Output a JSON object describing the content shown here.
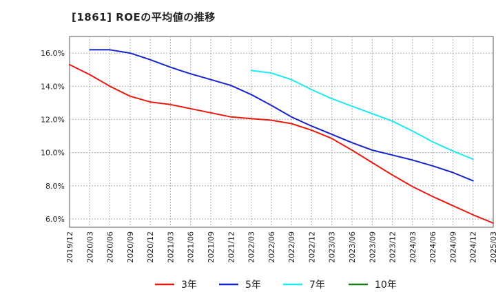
{
  "chart_data": {
    "type": "line",
    "title": "[1861]  ROEの平均値の推移",
    "xlabel": "",
    "ylabel": "",
    "ylim": [
      5.5,
      17.0
    ],
    "yticks": [
      "6.0%",
      "8.0%",
      "10.0%",
      "12.0%",
      "14.0%",
      "16.0%"
    ],
    "ytick_values": [
      6,
      8,
      10,
      12,
      14,
      16
    ],
    "x_labels": [
      "2019/12",
      "2020/03",
      "2020/06",
      "2020/09",
      "2020/12",
      "2021/03",
      "2021/06",
      "2021/09",
      "2021/12",
      "2022/03",
      "2022/06",
      "2022/09",
      "2022/12",
      "2023/03",
      "2023/06",
      "2023/09",
      "2023/12",
      "2024/03",
      "2024/06",
      "2024/09",
      "2024/12",
      "2025/03"
    ],
    "grid": true,
    "legend_position": "bottom",
    "series": [
      {
        "name": "3年",
        "color": "#e8190f",
        "values": [
          15.3,
          14.7,
          14.0,
          13.4,
          13.05,
          12.9,
          12.65,
          12.4,
          12.15,
          12.05,
          11.95,
          11.75,
          11.35,
          10.85,
          10.15,
          9.4,
          8.65,
          7.95,
          7.35,
          6.8,
          6.25,
          5.75
        ]
      },
      {
        "name": "5年",
        "color": "#1624c8",
        "start_index": 1,
        "values": [
          16.2,
          16.2,
          16.0,
          15.6,
          15.15,
          14.75,
          14.4,
          14.05,
          13.5,
          12.85,
          12.15,
          11.6,
          11.1,
          10.6,
          10.15,
          9.85,
          9.55,
          9.2,
          8.8,
          8.3
        ]
      },
      {
        "name": "7年",
        "color": "#1fe8ef",
        "start_index": 9,
        "values": [
          14.95,
          14.8,
          14.4,
          13.8,
          13.25,
          12.8,
          12.35,
          11.9,
          11.3,
          10.65,
          10.1,
          9.6
        ]
      },
      {
        "name": "10年",
        "color": "#1a7d19",
        "start_index": 0,
        "values": []
      }
    ]
  },
  "colors": {
    "axis": "#555555",
    "grid": "#b0b0b0",
    "text": "#222222"
  }
}
